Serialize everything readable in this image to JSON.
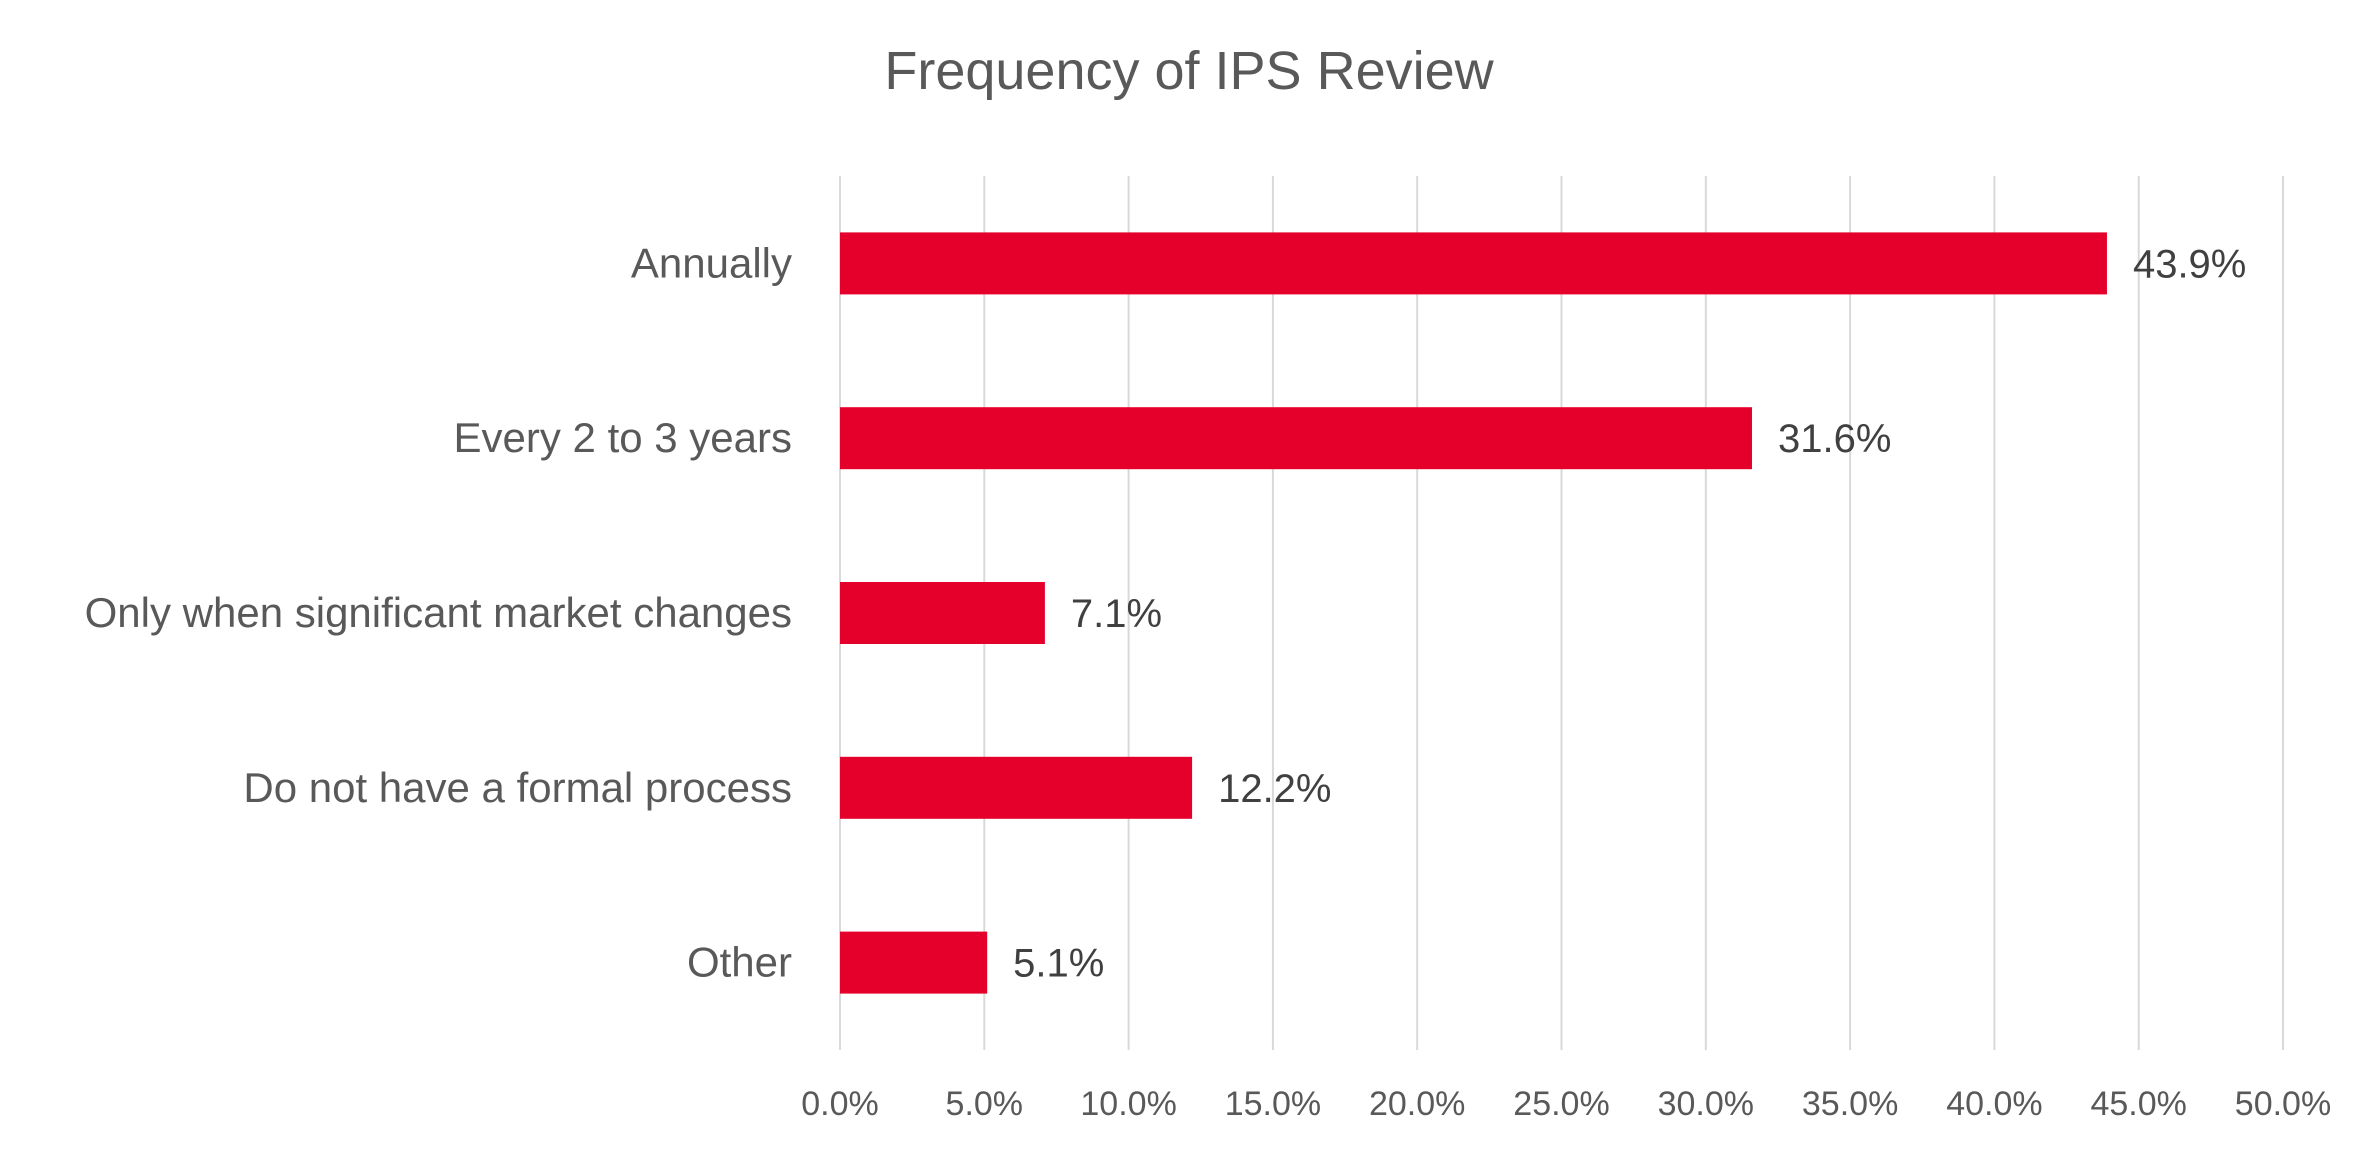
{
  "chart_data": {
    "type": "bar",
    "orientation": "horizontal",
    "title": "Frequency of IPS Review",
    "categories": [
      "Annually",
      "Every 2 to 3 years",
      "Only when significant market changes",
      "Do not have a formal process",
      "Other"
    ],
    "values": [
      43.9,
      31.6,
      7.1,
      12.2,
      5.1
    ],
    "data_labels": [
      "43.9%",
      "31.6%",
      "7.1%",
      "12.2%",
      "5.1%"
    ],
    "xlim": [
      0,
      50
    ],
    "x_ticks": [
      "0.0%",
      "5.0%",
      "10.0%",
      "15.0%",
      "20.0%",
      "25.0%",
      "30.0%",
      "35.0%",
      "40.0%",
      "45.0%",
      "50.0%"
    ],
    "xlabel": "",
    "ylabel": "",
    "grid": "vertical",
    "bar_color": "#E4002B",
    "legend": "none"
  }
}
